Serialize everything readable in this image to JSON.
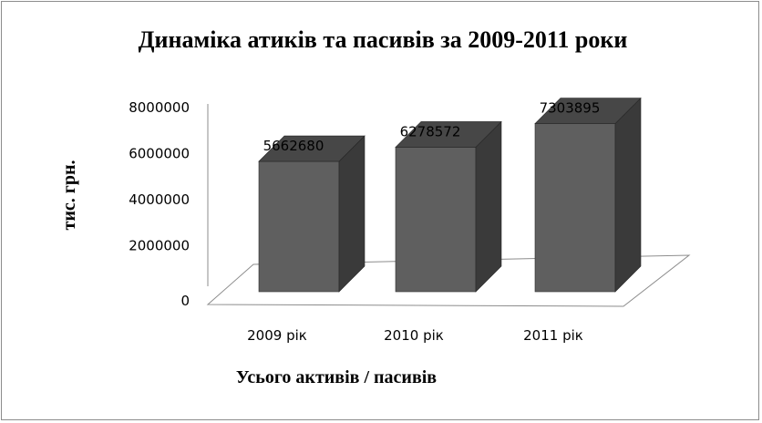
{
  "chart_data": {
    "type": "bar",
    "title": "Динаміка атиків та пасивів за 2009-2011 роки",
    "xlabel": "Усього активів / пасивів",
    "ylabel": "тис. грн.",
    "categories": [
      "2009 рік",
      "2010 рік",
      "2011 рік"
    ],
    "values": [
      5662680,
      6278572,
      7303895
    ],
    "data_labels": [
      "5662680",
      "6278572",
      "7303895"
    ],
    "y_ticks": [
      "0",
      "2000000",
      "4000000",
      "6000000",
      "8000000"
    ],
    "y_tick_values": [
      0,
      2000000,
      4000000,
      6000000,
      8000000
    ],
    "ylim": [
      0,
      8000000
    ],
    "grid": false,
    "legend": "none",
    "three_d": true,
    "colors": {
      "bar_front": "#5f5f5f",
      "bar_side": "#3a3a3a",
      "bar_top": "#474747",
      "floor_stroke": "#8c8c8c",
      "wall_stroke": "#8c8c8c"
    }
  }
}
